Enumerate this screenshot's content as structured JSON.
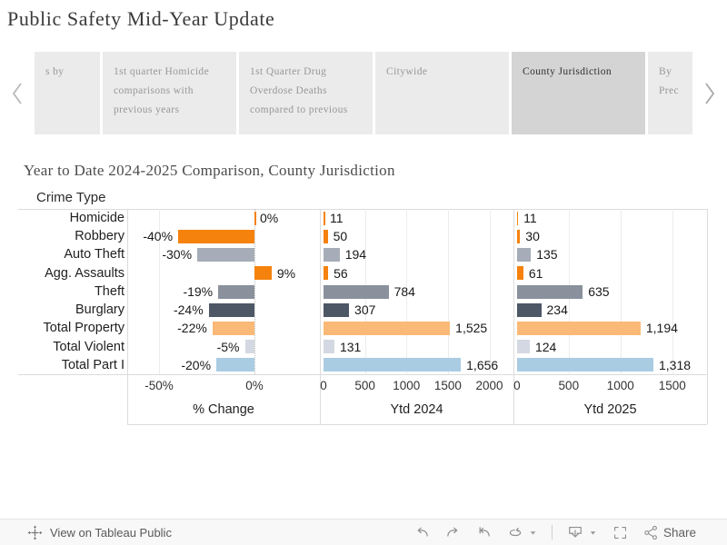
{
  "header": {
    "title": "Public Safety Mid-Year Update"
  },
  "tabs": {
    "items": [
      {
        "label": "s by",
        "selected": false
      },
      {
        "label": "1st quarter Homicide comparisons with previous years",
        "selected": false
      },
      {
        "label": "1st Quarter Drug Overdose Deaths compared to previous",
        "selected": false
      },
      {
        "label": "Citywide",
        "selected": false
      },
      {
        "label": "County Jurisdiction",
        "selected": true
      },
      {
        "label": "By Prec",
        "selected": false
      }
    ]
  },
  "chart_data": {
    "type": "bar",
    "orientation": "horizontal",
    "title": "Year to Date 2024-2025 Comparison, County Jurisdiction",
    "row_header": "Crime Type",
    "grid": true,
    "legend": "none",
    "categories": [
      "Homicide",
      "Robbery",
      "Auto Theft",
      "Agg. Assaults",
      "Theft",
      "Burglary",
      "Total Property",
      "Total Violent",
      "Total Part I"
    ],
    "colors": [
      "#F5820D",
      "#F5820D",
      "#A6ADB8",
      "#F5820D",
      "#8A919D",
      "#4D5766",
      "#FBB977",
      "#D3D8E2",
      "#A9CCE3"
    ],
    "panels": [
      {
        "axis_label": "% Change",
        "ticks": [
          "-50%",
          "0%"
        ],
        "tick_values": [
          -50,
          0
        ],
        "range": [
          -66.7,
          34.3
        ],
        "zero_line": true,
        "values": [
          0,
          -40,
          -30,
          9,
          -19,
          -24,
          -22,
          -5,
          -20
        ],
        "labels": [
          "0%",
          "-40%",
          "-30%",
          "9%",
          "-19%",
          "-24%",
          "-22%",
          "-5%",
          "-20%"
        ]
      },
      {
        "axis_label": "Ytd 2024",
        "ticks": [
          "0",
          "500",
          "1000",
          "1500",
          "2000"
        ],
        "tick_values": [
          0,
          500,
          1000,
          1500,
          2000
        ],
        "range": [
          -44,
          2290
        ],
        "zero_line": false,
        "values": [
          11,
          50,
          194,
          56,
          784,
          307,
          1525,
          131,
          1656
        ],
        "labels": [
          "11",
          "50",
          "194",
          "56",
          "784",
          "307",
          "1,525",
          "131",
          "1,656"
        ]
      },
      {
        "axis_label": "Ytd 2025",
        "ticks": [
          "0",
          "500",
          "1000",
          "1500"
        ],
        "tick_values": [
          0,
          500,
          1000,
          1500
        ],
        "range": [
          -34,
          1836
        ],
        "zero_line": false,
        "values": [
          11,
          30,
          135,
          61,
          635,
          234,
          1194,
          124,
          1318
        ],
        "labels": [
          "11",
          "30",
          "135",
          "61",
          "635",
          "234",
          "1,194",
          "124",
          "1,318"
        ]
      }
    ]
  },
  "footer": {
    "view_label": "View on Tableau Public",
    "share_label": "Share",
    "icons": [
      "tableau-logo",
      "undo",
      "redo",
      "replay",
      "refresh",
      "caret-down",
      "download",
      "fullscreen",
      "share"
    ]
  }
}
